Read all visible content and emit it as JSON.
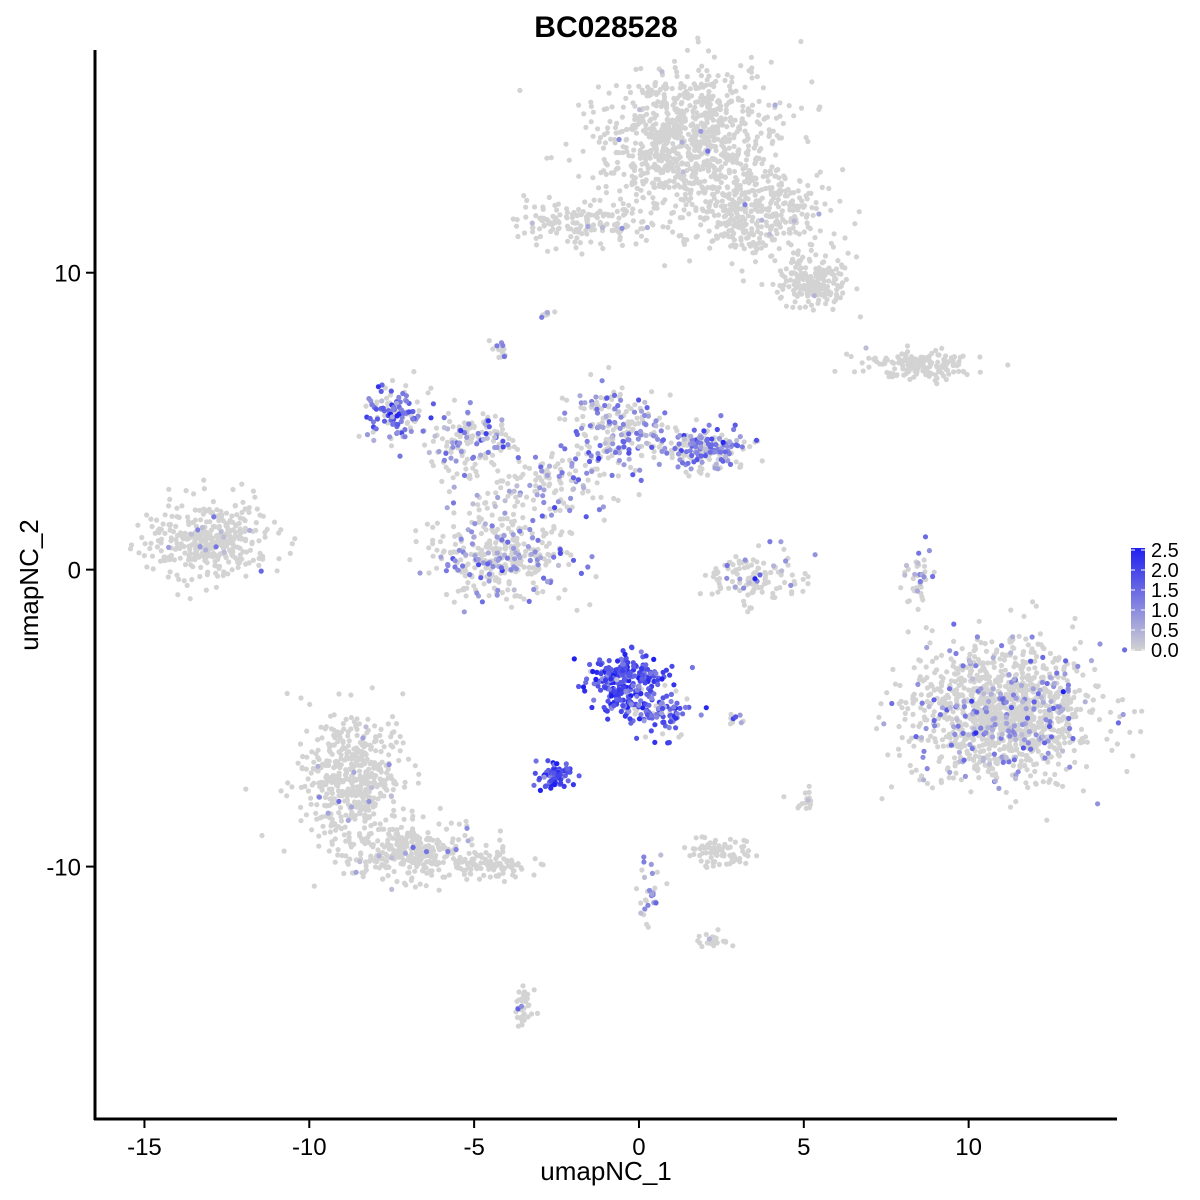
{
  "chart_data": {
    "type": "scatter",
    "title": "BC028528",
    "xlabel": "umapNC_1",
    "ylabel": "umapNC_2",
    "xlim": [
      -16.5,
      14.5
    ],
    "ylim": [
      -18.5,
      17.5
    ],
    "x_ticks": [
      -15,
      -10,
      -5,
      0,
      5,
      10
    ],
    "x_tick_labels": [
      "-15",
      "-10",
      "-5",
      "0",
      "5",
      "10"
    ],
    "y_ticks": [
      -10,
      0,
      10
    ],
    "y_tick_labels": [
      "-10",
      "0",
      "10"
    ],
    "grid": false,
    "legend": {
      "placement": "right",
      "type": "colorbar",
      "range": [
        0,
        2.5
      ],
      "ticks": [
        0,
        0.5,
        1,
        1.5,
        2,
        2.5
      ],
      "tick_labels": [
        "0.0",
        "0.5",
        "1.0",
        "1.5",
        "2.0",
        "2.5"
      ],
      "low_color": "#d3d3d3",
      "high_color": "#1f1ff0"
    },
    "clusters": [
      {
        "cx": 1.5,
        "cy": 14.5,
        "sx": 1.6,
        "sy": 1.4,
        "n": 900,
        "expr_frac": 0.01,
        "expr_mean": 0.6
      },
      {
        "cx": 3.5,
        "cy": 12.0,
        "sx": 1.4,
        "sy": 1.0,
        "n": 380,
        "expr_frac": 0.01,
        "expr_mean": 0.6
      },
      {
        "cx": 5.3,
        "cy": 9.7,
        "sx": 0.7,
        "sy": 0.5,
        "n": 200,
        "expr_frac": 0.01,
        "expr_mean": 0.6
      },
      {
        "cx": -1.7,
        "cy": 11.7,
        "sx": 1.3,
        "sy": 0.5,
        "n": 170,
        "expr_frac": 0.02,
        "expr_mean": 0.6
      },
      {
        "cx": 8.5,
        "cy": 6.9,
        "sx": 1.1,
        "sy": 0.3,
        "n": 160,
        "expr_frac": 0.03,
        "expr_mean": 0.6
      },
      {
        "cx": -13.0,
        "cy": 1.0,
        "sx": 1.2,
        "sy": 0.8,
        "n": 380,
        "expr_frac": 0.04,
        "expr_mean": 0.7
      },
      {
        "cx": -7.2,
        "cy": 5.3,
        "sx": 0.6,
        "sy": 0.6,
        "n": 120,
        "expr_frac": 0.65,
        "expr_mean": 1.4
      },
      {
        "cx": -5.0,
        "cy": 4.3,
        "sx": 1.1,
        "sy": 0.7,
        "n": 150,
        "expr_frac": 0.35,
        "expr_mean": 0.9
      },
      {
        "cx": -4.2,
        "cy": 0.5,
        "sx": 1.4,
        "sy": 1.0,
        "n": 360,
        "expr_frac": 0.25,
        "expr_mean": 0.9
      },
      {
        "cx": -0.6,
        "cy": 4.8,
        "sx": 1.0,
        "sy": 0.9,
        "n": 220,
        "expr_frac": 0.45,
        "expr_mean": 1.1
      },
      {
        "cx": 2.0,
        "cy": 4.1,
        "sx": 0.8,
        "sy": 0.5,
        "n": 180,
        "expr_frac": 0.5,
        "expr_mean": 1.1
      },
      {
        "cx": -2.8,
        "cy": 2.8,
        "sx": 1.2,
        "sy": 0.6,
        "n": 120,
        "expr_frac": 0.3,
        "expr_mean": 0.8
      },
      {
        "cx": 3.5,
        "cy": -0.2,
        "sx": 0.9,
        "sy": 0.6,
        "n": 120,
        "expr_frac": 0.15,
        "expr_mean": 0.8
      },
      {
        "cx": 11.0,
        "cy": -4.8,
        "sx": 1.7,
        "sy": 1.4,
        "n": 1300,
        "expr_frac": 0.16,
        "expr_mean": 0.9
      },
      {
        "cx": 8.4,
        "cy": -0.3,
        "sx": 0.3,
        "sy": 0.6,
        "n": 40,
        "expr_frac": 0.35,
        "expr_mean": 0.8
      },
      {
        "cx": -0.4,
        "cy": -3.8,
        "sx": 0.7,
        "sy": 0.6,
        "n": 280,
        "expr_frac": 0.97,
        "expr_mean": 1.8
      },
      {
        "cx": 0.8,
        "cy": -4.8,
        "sx": 0.5,
        "sy": 0.5,
        "n": 80,
        "expr_frac": 0.9,
        "expr_mean": 1.5
      },
      {
        "cx": -2.5,
        "cy": -6.9,
        "sx": 0.35,
        "sy": 0.25,
        "n": 70,
        "expr_frac": 0.95,
        "expr_mean": 1.8
      },
      {
        "cx": -8.7,
        "cy": -7.0,
        "sx": 0.9,
        "sy": 1.3,
        "n": 500,
        "expr_frac": 0.03,
        "expr_mean": 0.7
      },
      {
        "cx": -7.0,
        "cy": -9.5,
        "sx": 1.3,
        "sy": 0.6,
        "n": 300,
        "expr_frac": 0.03,
        "expr_mean": 0.7
      },
      {
        "cx": -4.5,
        "cy": -10.0,
        "sx": 0.8,
        "sy": 0.3,
        "n": 90,
        "expr_frac": 0.02,
        "expr_mean": 0.6
      },
      {
        "cx": 2.3,
        "cy": -9.5,
        "sx": 0.6,
        "sy": 0.3,
        "n": 80,
        "expr_frac": 0.02,
        "expr_mean": 0.6
      },
      {
        "cx": 2.3,
        "cy": -12.5,
        "sx": 0.3,
        "sy": 0.15,
        "n": 25,
        "expr_frac": 0.05,
        "expr_mean": 0.6
      },
      {
        "cx": -3.5,
        "cy": -14.8,
        "sx": 0.2,
        "sy": 0.4,
        "n": 35,
        "expr_frac": 0.05,
        "expr_mean": 0.6
      },
      {
        "cx": 0.3,
        "cy": -10.8,
        "sx": 0.25,
        "sy": 0.9,
        "n": 30,
        "expr_frac": 0.5,
        "expr_mean": 0.9
      },
      {
        "cx": -4.2,
        "cy": 7.4,
        "sx": 0.15,
        "sy": 0.2,
        "n": 14,
        "expr_frac": 0.3,
        "expr_mean": 0.8
      },
      {
        "cx": -2.8,
        "cy": 8.6,
        "sx": 0.15,
        "sy": 0.1,
        "n": 10,
        "expr_frac": 0.3,
        "expr_mean": 0.8
      },
      {
        "cx": 2.9,
        "cy": -5.0,
        "sx": 0.2,
        "sy": 0.1,
        "n": 10,
        "expr_frac": 0.4,
        "expr_mean": 0.9
      },
      {
        "cx": 5.0,
        "cy": -7.8,
        "sx": 0.2,
        "sy": 0.3,
        "n": 15,
        "expr_frac": 0.1,
        "expr_mean": 0.7
      }
    ]
  }
}
